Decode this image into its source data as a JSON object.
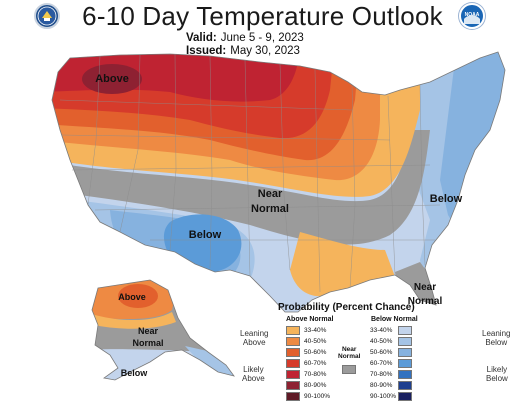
{
  "header": {
    "title": "6-10 Day Temperature Outlook",
    "valid_label": "Valid:",
    "valid_dates": "June 5 - 9, 2023",
    "issued_label": "Issued:",
    "issued_date": "May 30, 2023"
  },
  "logos": {
    "left": "commerce-seal-icon",
    "right": "noaa-logo-icon",
    "right_text": "NOAA"
  },
  "map_labels": {
    "above_nw": "Above",
    "near_normal_c1": "Near",
    "near_normal_c2": "Normal",
    "below_sw": "Below",
    "below_east": "Below",
    "near_normal_se1": "Near",
    "near_normal_se2": "Normal",
    "alaska_above": "Above",
    "alaska_near1": "Near",
    "alaska_near2": "Normal",
    "alaska_below": "Below"
  },
  "colors": {
    "above": [
      "#f5b45c",
      "#ee8a43",
      "#e2602d",
      "#d63b2b",
      "#bf2332",
      "#8e2132",
      "#5f1a26"
    ],
    "below": [
      "#c3d4ec",
      "#a5c4e6",
      "#86b2df",
      "#5b9bd8",
      "#3272c0",
      "#1e3f8f",
      "#1a2060"
    ],
    "near_normal": "#9b9b9b"
  },
  "legend": {
    "title": "Probability (Percent Chance)",
    "above_header": "Above Normal",
    "below_header": "Below Normal",
    "near_normal_label_1": "Near",
    "near_normal_label_2": "Normal",
    "leaning_above_1": "Leaning",
    "leaning_above_2": "Above",
    "likely_above_1": "Likely",
    "likely_above_2": "Above",
    "leaning_below_1": "Leaning",
    "leaning_below_2": "Below",
    "likely_below_1": "Likely",
    "likely_below_2": "Below",
    "ranges": [
      "33-40%",
      "40-50%",
      "50-60%",
      "60-70%",
      "70-80%",
      "80-90%",
      "90-100%"
    ]
  }
}
